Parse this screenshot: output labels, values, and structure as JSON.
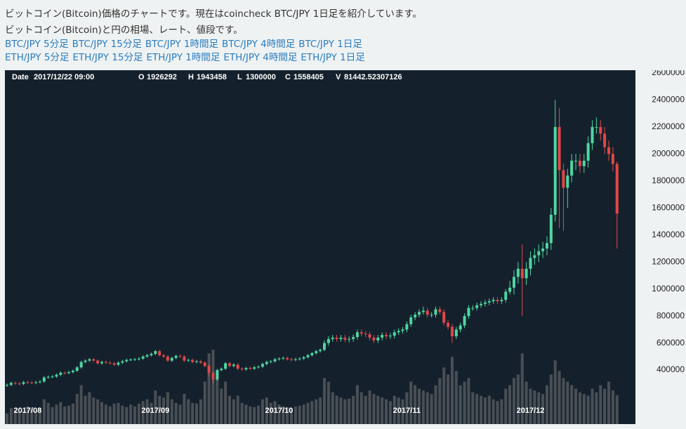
{
  "header": {
    "lines": [
      "ビットコイン(Bitcoin)価格のチャートです。現在はcoincheck BTC/JPY 1日足を紹介しています。",
      "ビットコイン(Bitcoin)と円の相場、レート、値段です。"
    ],
    "links": [
      [
        "BTC/JPY 5分足",
        "BTC/JPY 15分足",
        "BTC/JPY 1時間足",
        "BTC/JPY 4時間足",
        "BTC/JPY 1日足"
      ],
      [
        "ETH/JPY 5分足",
        "ETH/JPY 15分足",
        "ETH/JPY 1時間足",
        "ETH/JPY 4時間足",
        "ETH/JPY 1日足"
      ]
    ]
  },
  "chart_data": {
    "type": "candlestick",
    "info": {
      "date_label": "Date",
      "date": "2017/12/22 09:00",
      "labels": [
        "O",
        "H",
        "L",
        "C",
        "V"
      ]
    },
    "categories": [
      null,
      null,
      null,
      null,
      null,
      "2017/08",
      null,
      null,
      null,
      null,
      null,
      null,
      null,
      null,
      null,
      null,
      null,
      null,
      null,
      null,
      null,
      null,
      null,
      null,
      null,
      null,
      null,
      null,
      null,
      null,
      null,
      null,
      null,
      null,
      null,
      null,
      "2017/09",
      null,
      null,
      null,
      null,
      null,
      null,
      null,
      null,
      null,
      null,
      null,
      null,
      null,
      null,
      null,
      null,
      null,
      null,
      null,
      null,
      null,
      null,
      null,
      null,
      null,
      null,
      null,
      null,
      null,
      "2017/10",
      null,
      null,
      null,
      null,
      null,
      null,
      null,
      null,
      null,
      null,
      null,
      null,
      null,
      null,
      null,
      null,
      null,
      null,
      null,
      null,
      null,
      null,
      null,
      null,
      null,
      null,
      null,
      null,
      null,
      null,
      "2017/11",
      null,
      null,
      null,
      null,
      null,
      null,
      null,
      null,
      null,
      null,
      null,
      null,
      null,
      null,
      null,
      null,
      null,
      null,
      null,
      null,
      null,
      null,
      null,
      null,
      null,
      null,
      null,
      null,
      null,
      "2017/12",
      null,
      null,
      null,
      null,
      null,
      null,
      null,
      null,
      null,
      null,
      null,
      null,
      null,
      null,
      null,
      null,
      null,
      null,
      null,
      null,
      null
    ],
    "open": [
      285000,
      290000,
      305000,
      300000,
      298000,
      310000,
      308000,
      305000,
      310000,
      315000,
      345000,
      350000,
      352000,
      365000,
      380000,
      378000,
      385000,
      395000,
      420000,
      460000,
      470000,
      480000,
      470000,
      450000,
      460000,
      455000,
      450000,
      440000,
      455000,
      465000,
      475000,
      478000,
      480000,
      485000,
      500000,
      510000,
      520000,
      540000,
      510000,
      500000,
      470000,
      490000,
      505000,
      500000,
      470000,
      475000,
      460000,
      465000,
      455000,
      430000,
      380000,
      330000,
      400000,
      410000,
      450000,
      430000,
      440000,
      410000,
      405000,
      415000,
      410000,
      420000,
      425000,
      445000,
      460000,
      465000,
      480000,
      485000,
      490000,
      480000,
      475000,
      480000,
      485000,
      495000,
      510000,
      525000,
      540000,
      550000,
      600000,
      630000,
      640000,
      630000,
      640000,
      625000,
      630000,
      645000,
      680000,
      670000,
      665000,
      640000,
      620000,
      640000,
      660000,
      650000,
      655000,
      680000,
      690000,
      700000,
      740000,
      790000,
      810000,
      830000,
      840000,
      810000,
      810000,
      850000,
      830000,
      750000,
      720000,
      650000,
      700000,
      730000,
      800000,
      860000,
      860000,
      880000,
      890000,
      900000,
      910000,
      920000,
      910000,
      920000,
      980000,
      1010000,
      1090000,
      1150000,
      1080000,
      1150000,
      1230000,
      1250000,
      1280000,
      1300000,
      1340000,
      1550000,
      2200000,
      1880000,
      1750000,
      1840000,
      1950000,
      1950000,
      1910000,
      1950000,
      2080000,
      2200000,
      2200000,
      2150000,
      2050000,
      2000000,
      1926292
    ],
    "high": [
      300000,
      315000,
      315000,
      310000,
      320000,
      320000,
      318000,
      320000,
      325000,
      355000,
      360000,
      362000,
      375000,
      390000,
      390000,
      395000,
      405000,
      430000,
      470000,
      480000,
      490000,
      490000,
      480000,
      470000,
      470000,
      465000,
      460000,
      465000,
      475000,
      485000,
      488000,
      490000,
      495000,
      510000,
      520000,
      530000,
      550000,
      550000,
      520000,
      510000,
      500000,
      515000,
      515000,
      510000,
      485000,
      485000,
      475000,
      475000,
      465000,
      440000,
      390000,
      410000,
      420000,
      460000,
      460000,
      450000,
      450000,
      420000,
      425000,
      425000,
      430000,
      435000,
      455000,
      470000,
      475000,
      490000,
      495000,
      500000,
      500000,
      490000,
      490000,
      495000,
      505000,
      520000,
      535000,
      550000,
      560000,
      620000,
      650000,
      660000,
      660000,
      660000,
      660000,
      650000,
      665000,
      700000,
      700000,
      690000,
      685000,
      660000,
      660000,
      680000,
      680000,
      675000,
      700000,
      710000,
      720000,
      760000,
      810000,
      830000,
      850000,
      870000,
      860000,
      830000,
      870000,
      870000,
      850000,
      770000,
      740000,
      720000,
      750000,
      820000,
      880000,
      880000,
      900000,
      910000,
      920000,
      930000,
      940000,
      940000,
      940000,
      1000000,
      1060000,
      1140000,
      1200000,
      1330000,
      1200000,
      1280000,
      1300000,
      1330000,
      1350000,
      1390000,
      1600000,
      2400000,
      2340000,
      1930000,
      1890000,
      2000000,
      2000000,
      2000000,
      2000000,
      2130000,
      2250000,
      2270000,
      2250000,
      2200000,
      2100000,
      2050000,
      1943458
    ],
    "low": [
      275000,
      280000,
      290000,
      288000,
      288000,
      298000,
      295000,
      295000,
      300000,
      305000,
      335000,
      340000,
      342000,
      355000,
      368000,
      368000,
      375000,
      385000,
      410000,
      450000,
      460000,
      460000,
      440000,
      440000,
      445000,
      440000,
      430000,
      430000,
      445000,
      455000,
      465000,
      468000,
      470000,
      475000,
      490000,
      500000,
      510000,
      500000,
      490000,
      460000,
      460000,
      480000,
      490000,
      460000,
      460000,
      450000,
      450000,
      445000,
      420000,
      350000,
      300000,
      320000,
      390000,
      400000,
      420000,
      420000,
      400000,
      395000,
      395000,
      400000,
      400000,
      410000,
      415000,
      435000,
      450000,
      455000,
      470000,
      475000,
      470000,
      465000,
      465000,
      470000,
      475000,
      485000,
      500000,
      515000,
      530000,
      540000,
      580000,
      610000,
      610000,
      610000,
      605000,
      605000,
      610000,
      625000,
      650000,
      645000,
      620000,
      600000,
      600000,
      620000,
      630000,
      630000,
      635000,
      660000,
      670000,
      680000,
      720000,
      770000,
      790000,
      810000,
      790000,
      790000,
      790000,
      810000,
      730000,
      700000,
      600000,
      630000,
      680000,
      710000,
      780000,
      840000,
      840000,
      860000,
      870000,
      880000,
      890000,
      890000,
      890000,
      900000,
      960000,
      960000,
      1040000,
      800000,
      1030000,
      1100000,
      1180000,
      1200000,
      1230000,
      1250000,
      1290000,
      1500000,
      1450000,
      1430000,
      1600000,
      1790000,
      1880000,
      1860000,
      1860000,
      1900000,
      2030000,
      2150000,
      2100000,
      2000000,
      1950000,
      1870000,
      1300000
    ],
    "close": [
      290000,
      305000,
      300000,
      298000,
      310000,
      308000,
      305000,
      310000,
      315000,
      345000,
      350000,
      352000,
      365000,
      380000,
      378000,
      385000,
      395000,
      420000,
      460000,
      470000,
      480000,
      470000,
      450000,
      460000,
      455000,
      450000,
      440000,
      455000,
      465000,
      475000,
      478000,
      480000,
      485000,
      500000,
      510000,
      520000,
      540000,
      510000,
      500000,
      470000,
      490000,
      505000,
      500000,
      470000,
      475000,
      460000,
      465000,
      455000,
      430000,
      380000,
      330000,
      400000,
      410000,
      450000,
      430000,
      440000,
      410000,
      405000,
      415000,
      410000,
      420000,
      425000,
      445000,
      460000,
      465000,
      480000,
      485000,
      490000,
      480000,
      475000,
      480000,
      485000,
      495000,
      510000,
      525000,
      540000,
      550000,
      600000,
      630000,
      640000,
      630000,
      640000,
      625000,
      630000,
      645000,
      680000,
      670000,
      665000,
      640000,
      620000,
      640000,
      660000,
      650000,
      655000,
      680000,
      690000,
      700000,
      740000,
      790000,
      810000,
      830000,
      840000,
      810000,
      810000,
      850000,
      830000,
      750000,
      720000,
      650000,
      700000,
      730000,
      800000,
      860000,
      860000,
      880000,
      890000,
      900000,
      910000,
      920000,
      910000,
      920000,
      980000,
      1010000,
      1090000,
      1150000,
      1080000,
      1150000,
      1230000,
      1250000,
      1280000,
      1300000,
      1340000,
      1550000,
      2200000,
      1880000,
      1750000,
      1840000,
      1950000,
      1950000,
      1910000,
      1950000,
      2080000,
      2200000,
      2200000,
      2150000,
      2050000,
      2000000,
      1926292,
      1558405
    ],
    "volume": [
      30000,
      45000,
      40000,
      35000,
      38000,
      50000,
      42000,
      38000,
      45000,
      70000,
      60000,
      48000,
      55000,
      62000,
      50000,
      52000,
      58000,
      85000,
      110000,
      80000,
      90000,
      75000,
      70000,
      62000,
      55000,
      50000,
      58000,
      60000,
      52000,
      48000,
      55000,
      50000,
      58000,
      65000,
      70000,
      60000,
      95000,
      80000,
      75000,
      90000,
      70000,
      60000,
      55000,
      85000,
      70000,
      60000,
      58000,
      70000,
      120000,
      200000,
      210000,
      150000,
      100000,
      120000,
      80000,
      70000,
      80000,
      60000,
      55000,
      50000,
      48000,
      52000,
      70000,
      75000,
      60000,
      65000,
      55000,
      50000,
      48000,
      45000,
      50000,
      52000,
      55000,
      60000,
      65000,
      70000,
      75000,
      130000,
      120000,
      90000,
      80000,
      75000,
      70000,
      72000,
      80000,
      110000,
      90000,
      80000,
      95000,
      85000,
      80000,
      75000,
      70000,
      65000,
      80000,
      75000,
      70000,
      90000,
      120000,
      110000,
      100000,
      95000,
      90000,
      85000,
      110000,
      130000,
      160000,
      140000,
      190000,
      150000,
      110000,
      120000,
      130000,
      90000,
      85000,
      80000,
      75000,
      80000,
      70000,
      65000,
      70000,
      100000,
      110000,
      130000,
      140000,
      200000,
      120000,
      100000,
      95000,
      90000,
      85000,
      110000,
      140000,
      180000,
      150000,
      130000,
      120000,
      110000,
      100000,
      90000,
      85000,
      80000,
      100000,
      90000,
      110000,
      100000,
      120000,
      95000,
      81442.52307126
    ],
    "ylim": [
      0,
      2620000
    ],
    "yticks": [
      400000,
      600000,
      800000,
      1000000,
      1200000,
      1400000,
      1600000,
      1800000,
      2000000,
      2200000,
      2400000,
      2600000
    ],
    "y2lim": [
      0,
      1000000
    ],
    "grid": false,
    "up_color": "#4fd6a2",
    "down_color": "#e04848",
    "volume_color": "#4a4f55",
    "background": "#14212c"
  }
}
